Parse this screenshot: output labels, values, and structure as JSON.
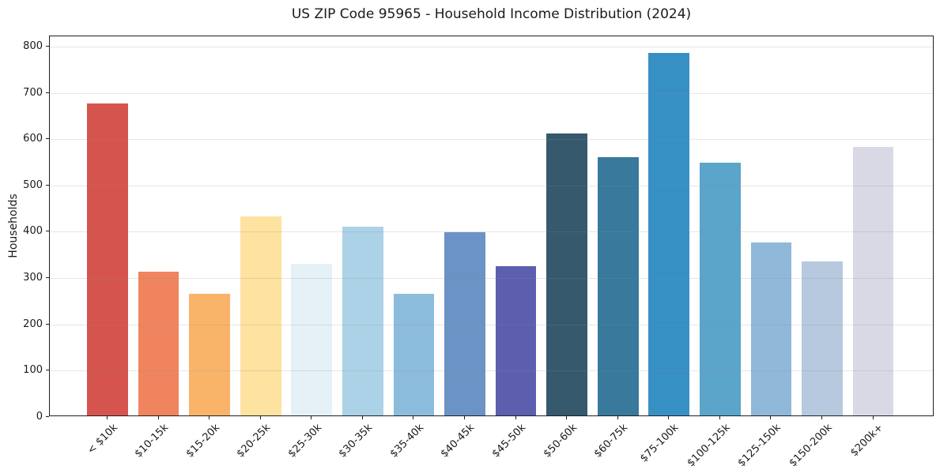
{
  "title": "US ZIP Code 95965 - Household Income Distribution (2024)",
  "chart_data": {
    "type": "bar",
    "title": "US ZIP Code 95965 - Household Income Distribution (2024)",
    "xlabel": "",
    "ylabel": "Households",
    "categories": [
      "< $10k",
      "$10-15k",
      "$15-20k",
      "$20-25k",
      "$25-30k",
      "$30-35k",
      "$35-40k",
      "$40-45k",
      "$45-50k",
      "$50-60k",
      "$60-75k",
      "$75-100k",
      "$100-125k",
      "$125-150k",
      "$150-200k",
      "$200k+"
    ],
    "values": [
      673,
      311,
      263,
      430,
      328,
      408,
      263,
      396,
      322,
      609,
      557,
      783,
      545,
      374,
      333,
      580
    ],
    "bar_colors": [
      "#d6544e",
      "#f0845e",
      "#f9b469",
      "#fde2a0",
      "#e5f1f6",
      "#abd2e6",
      "#8cbcdc",
      "#6b93c6",
      "#5c5fad",
      "#36596d",
      "#38799c",
      "#3790c4",
      "#5ba4ca",
      "#90b8d9",
      "#b7c9de",
      "#d9d9e6"
    ],
    "yticks": [
      0,
      100,
      200,
      300,
      400,
      500,
      600,
      700,
      800
    ],
    "ylim": [
      0,
      822
    ],
    "grid": "horizontal-only",
    "legend": "none",
    "x_tick_rotation_deg": 45
  }
}
